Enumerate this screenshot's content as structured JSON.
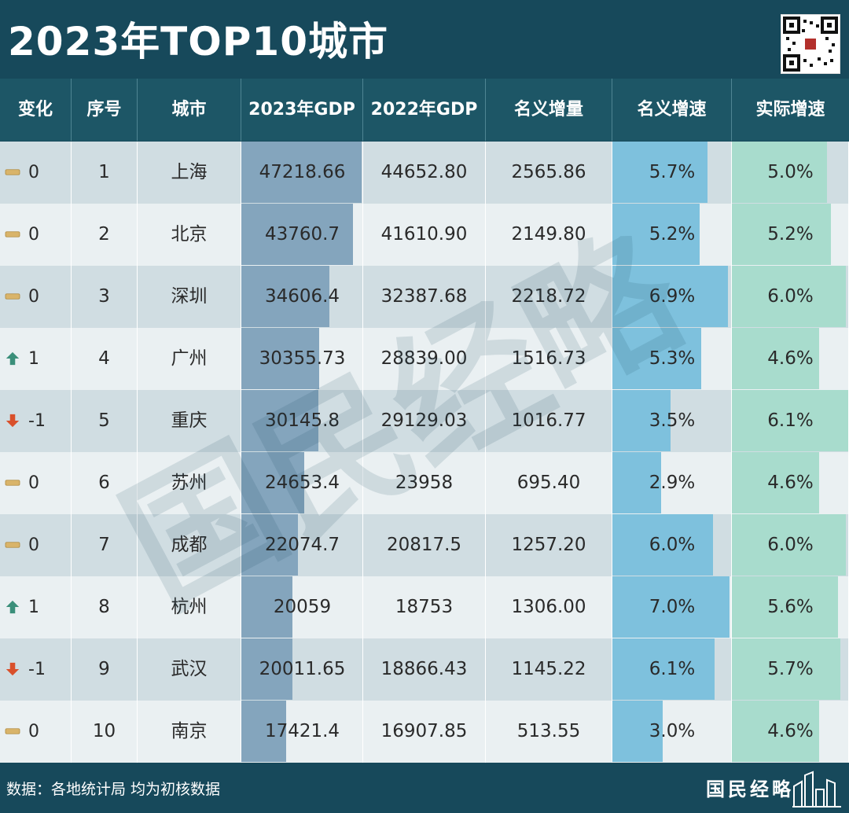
{
  "title": "2023年TOP10城市",
  "headers": [
    "变化",
    "序号",
    "城市",
    "2023年GDP",
    "2022年GDP",
    "名义增量",
    "名义增速",
    "实际增速"
  ],
  "colors": {
    "up": "#3a8f7a",
    "down": "#d9502b",
    "flat": "#d9b46a",
    "gdp_bar": "#84a5bd",
    "nominal_bar": "#7ec1dd",
    "real_bar": "#a8dccd"
  },
  "chart_data": {
    "type": "table",
    "title": "2023年TOP10城市",
    "columns": [
      "变化",
      "序号",
      "城市",
      "2023年GDP",
      "2022年GDP",
      "名义增量",
      "名义增速",
      "实际增速"
    ],
    "rows": [
      {
        "change": "0",
        "change_dir": "flat",
        "rank": "1",
        "city": "上海",
        "gdp2023": "47218.66",
        "gdp2022": "44652.80",
        "increase": "2565.86",
        "nominal": "5.7%",
        "real": "5.0%"
      },
      {
        "change": "0",
        "change_dir": "flat",
        "rank": "2",
        "city": "北京",
        "gdp2023": "43760.7",
        "gdp2022": "41610.90",
        "increase": "2149.80",
        "nominal": "5.2%",
        "real": "5.2%"
      },
      {
        "change": "0",
        "change_dir": "flat",
        "rank": "3",
        "city": "深圳",
        "gdp2023": "34606.4",
        "gdp2022": "32387.68",
        "increase": "2218.72",
        "nominal": "6.9%",
        "real": "6.0%"
      },
      {
        "change": "1",
        "change_dir": "up",
        "rank": "4",
        "city": "广州",
        "gdp2023": "30355.73",
        "gdp2022": "28839.00",
        "increase": "1516.73",
        "nominal": "5.3%",
        "real": "4.6%"
      },
      {
        "change": "-1",
        "change_dir": "down",
        "rank": "5",
        "city": "重庆",
        "gdp2023": "30145.8",
        "gdp2022": "29129.03",
        "increase": "1016.77",
        "nominal": "3.5%",
        "real": "6.1%"
      },
      {
        "change": "0",
        "change_dir": "flat",
        "rank": "6",
        "city": "苏州",
        "gdp2023": "24653.4",
        "gdp2022": "23958",
        "increase": "695.40",
        "nominal": "2.9%",
        "real": "4.6%"
      },
      {
        "change": "0",
        "change_dir": "flat",
        "rank": "7",
        "city": "成都",
        "gdp2023": "22074.7",
        "gdp2022": "20817.5",
        "increase": "1257.20",
        "nominal": "6.0%",
        "real": "6.0%"
      },
      {
        "change": "1",
        "change_dir": "up",
        "rank": "8",
        "city": "杭州",
        "gdp2023": "20059",
        "gdp2022": "18753",
        "increase": "1306.00",
        "nominal": "7.0%",
        "real": "5.6%"
      },
      {
        "change": "-1",
        "change_dir": "down",
        "rank": "9",
        "city": "武汉",
        "gdp2023": "20011.65",
        "gdp2022": "18866.43",
        "increase": "1145.22",
        "nominal": "6.1%",
        "real": "5.7%"
      },
      {
        "change": "0",
        "change_dir": "flat",
        "rank": "10",
        "city": "南京",
        "gdp2023": "17421.4",
        "gdp2022": "16907.85",
        "increase": "513.55",
        "nominal": "3.0%",
        "real": "4.6%"
      }
    ]
  },
  "watermark": "国民经略",
  "footer": {
    "source": "数据：各地统计局   均为初核数据",
    "brand": "国民经略"
  }
}
